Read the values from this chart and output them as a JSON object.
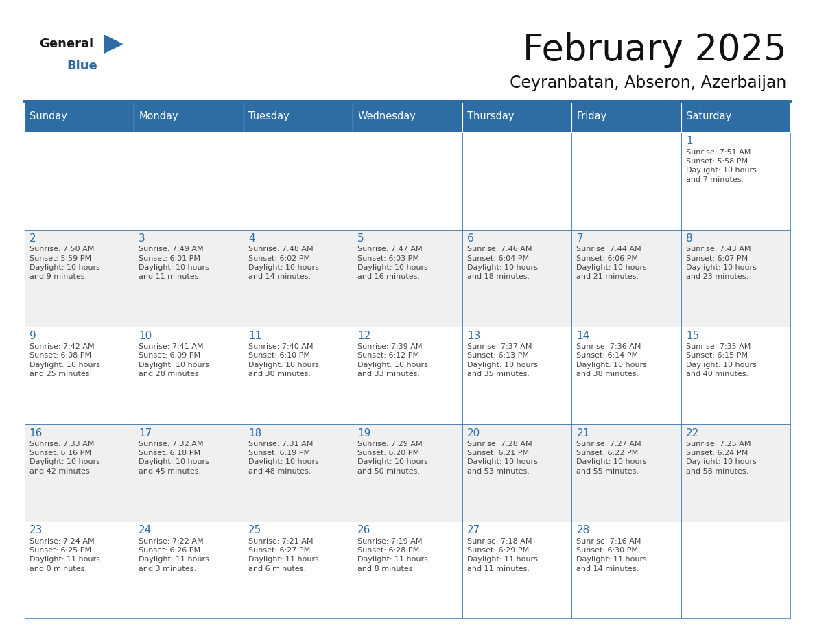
{
  "title": "February 2025",
  "subtitle": "Ceyranbatan, Abseron, Azerbaijan",
  "header_color": "#2E6DA4",
  "header_text_color": "#FFFFFF",
  "day_names": [
    "Sunday",
    "Monday",
    "Tuesday",
    "Wednesday",
    "Thursday",
    "Friday",
    "Saturday"
  ],
  "bg_color": "#FFFFFF",
  "cell_bg_alt": "#F0F0F0",
  "border_color": "#2E6DA4",
  "day_number_color": "#2E6DA4",
  "text_color": "#444444",
  "logo_general_color": "#1a1a1a",
  "logo_blue_color": "#2E6DA4",
  "calendar": [
    [
      null,
      null,
      null,
      null,
      null,
      null,
      1
    ],
    [
      2,
      3,
      4,
      5,
      6,
      7,
      8
    ],
    [
      9,
      10,
      11,
      12,
      13,
      14,
      15
    ],
    [
      16,
      17,
      18,
      19,
      20,
      21,
      22
    ],
    [
      23,
      24,
      25,
      26,
      27,
      28,
      null
    ]
  ],
  "cell_data": {
    "1": {
      "sunrise": "7:51 AM",
      "sunset": "5:58 PM",
      "daylight_hours": 10,
      "daylight_minutes": 7
    },
    "2": {
      "sunrise": "7:50 AM",
      "sunset": "5:59 PM",
      "daylight_hours": 10,
      "daylight_minutes": 9
    },
    "3": {
      "sunrise": "7:49 AM",
      "sunset": "6:01 PM",
      "daylight_hours": 10,
      "daylight_minutes": 11
    },
    "4": {
      "sunrise": "7:48 AM",
      "sunset": "6:02 PM",
      "daylight_hours": 10,
      "daylight_minutes": 14
    },
    "5": {
      "sunrise": "7:47 AM",
      "sunset": "6:03 PM",
      "daylight_hours": 10,
      "daylight_minutes": 16
    },
    "6": {
      "sunrise": "7:46 AM",
      "sunset": "6:04 PM",
      "daylight_hours": 10,
      "daylight_minutes": 18
    },
    "7": {
      "sunrise": "7:44 AM",
      "sunset": "6:06 PM",
      "daylight_hours": 10,
      "daylight_minutes": 21
    },
    "8": {
      "sunrise": "7:43 AM",
      "sunset": "6:07 PM",
      "daylight_hours": 10,
      "daylight_minutes": 23
    },
    "9": {
      "sunrise": "7:42 AM",
      "sunset": "6:08 PM",
      "daylight_hours": 10,
      "daylight_minutes": 25
    },
    "10": {
      "sunrise": "7:41 AM",
      "sunset": "6:09 PM",
      "daylight_hours": 10,
      "daylight_minutes": 28
    },
    "11": {
      "sunrise": "7:40 AM",
      "sunset": "6:10 PM",
      "daylight_hours": 10,
      "daylight_minutes": 30
    },
    "12": {
      "sunrise": "7:39 AM",
      "sunset": "6:12 PM",
      "daylight_hours": 10,
      "daylight_minutes": 33
    },
    "13": {
      "sunrise": "7:37 AM",
      "sunset": "6:13 PM",
      "daylight_hours": 10,
      "daylight_minutes": 35
    },
    "14": {
      "sunrise": "7:36 AM",
      "sunset": "6:14 PM",
      "daylight_hours": 10,
      "daylight_minutes": 38
    },
    "15": {
      "sunrise": "7:35 AM",
      "sunset": "6:15 PM",
      "daylight_hours": 10,
      "daylight_minutes": 40
    },
    "16": {
      "sunrise": "7:33 AM",
      "sunset": "6:16 PM",
      "daylight_hours": 10,
      "daylight_minutes": 42
    },
    "17": {
      "sunrise": "7:32 AM",
      "sunset": "6:18 PM",
      "daylight_hours": 10,
      "daylight_minutes": 45
    },
    "18": {
      "sunrise": "7:31 AM",
      "sunset": "6:19 PM",
      "daylight_hours": 10,
      "daylight_minutes": 48
    },
    "19": {
      "sunrise": "7:29 AM",
      "sunset": "6:20 PM",
      "daylight_hours": 10,
      "daylight_minutes": 50
    },
    "20": {
      "sunrise": "7:28 AM",
      "sunset": "6:21 PM",
      "daylight_hours": 10,
      "daylight_minutes": 53
    },
    "21": {
      "sunrise": "7:27 AM",
      "sunset": "6:22 PM",
      "daylight_hours": 10,
      "daylight_minutes": 55
    },
    "22": {
      "sunrise": "7:25 AM",
      "sunset": "6:24 PM",
      "daylight_hours": 10,
      "daylight_minutes": 58
    },
    "23": {
      "sunrise": "7:24 AM",
      "sunset": "6:25 PM",
      "daylight_hours": 11,
      "daylight_minutes": 0
    },
    "24": {
      "sunrise": "7:22 AM",
      "sunset": "6:26 PM",
      "daylight_hours": 11,
      "daylight_minutes": 3
    },
    "25": {
      "sunrise": "7:21 AM",
      "sunset": "6:27 PM",
      "daylight_hours": 11,
      "daylight_minutes": 6
    },
    "26": {
      "sunrise": "7:19 AM",
      "sunset": "6:28 PM",
      "daylight_hours": 11,
      "daylight_minutes": 8
    },
    "27": {
      "sunrise": "7:18 AM",
      "sunset": "6:29 PM",
      "daylight_hours": 11,
      "daylight_minutes": 11
    },
    "28": {
      "sunrise": "7:16 AM",
      "sunset": "6:30 PM",
      "daylight_hours": 11,
      "daylight_minutes": 14
    }
  }
}
